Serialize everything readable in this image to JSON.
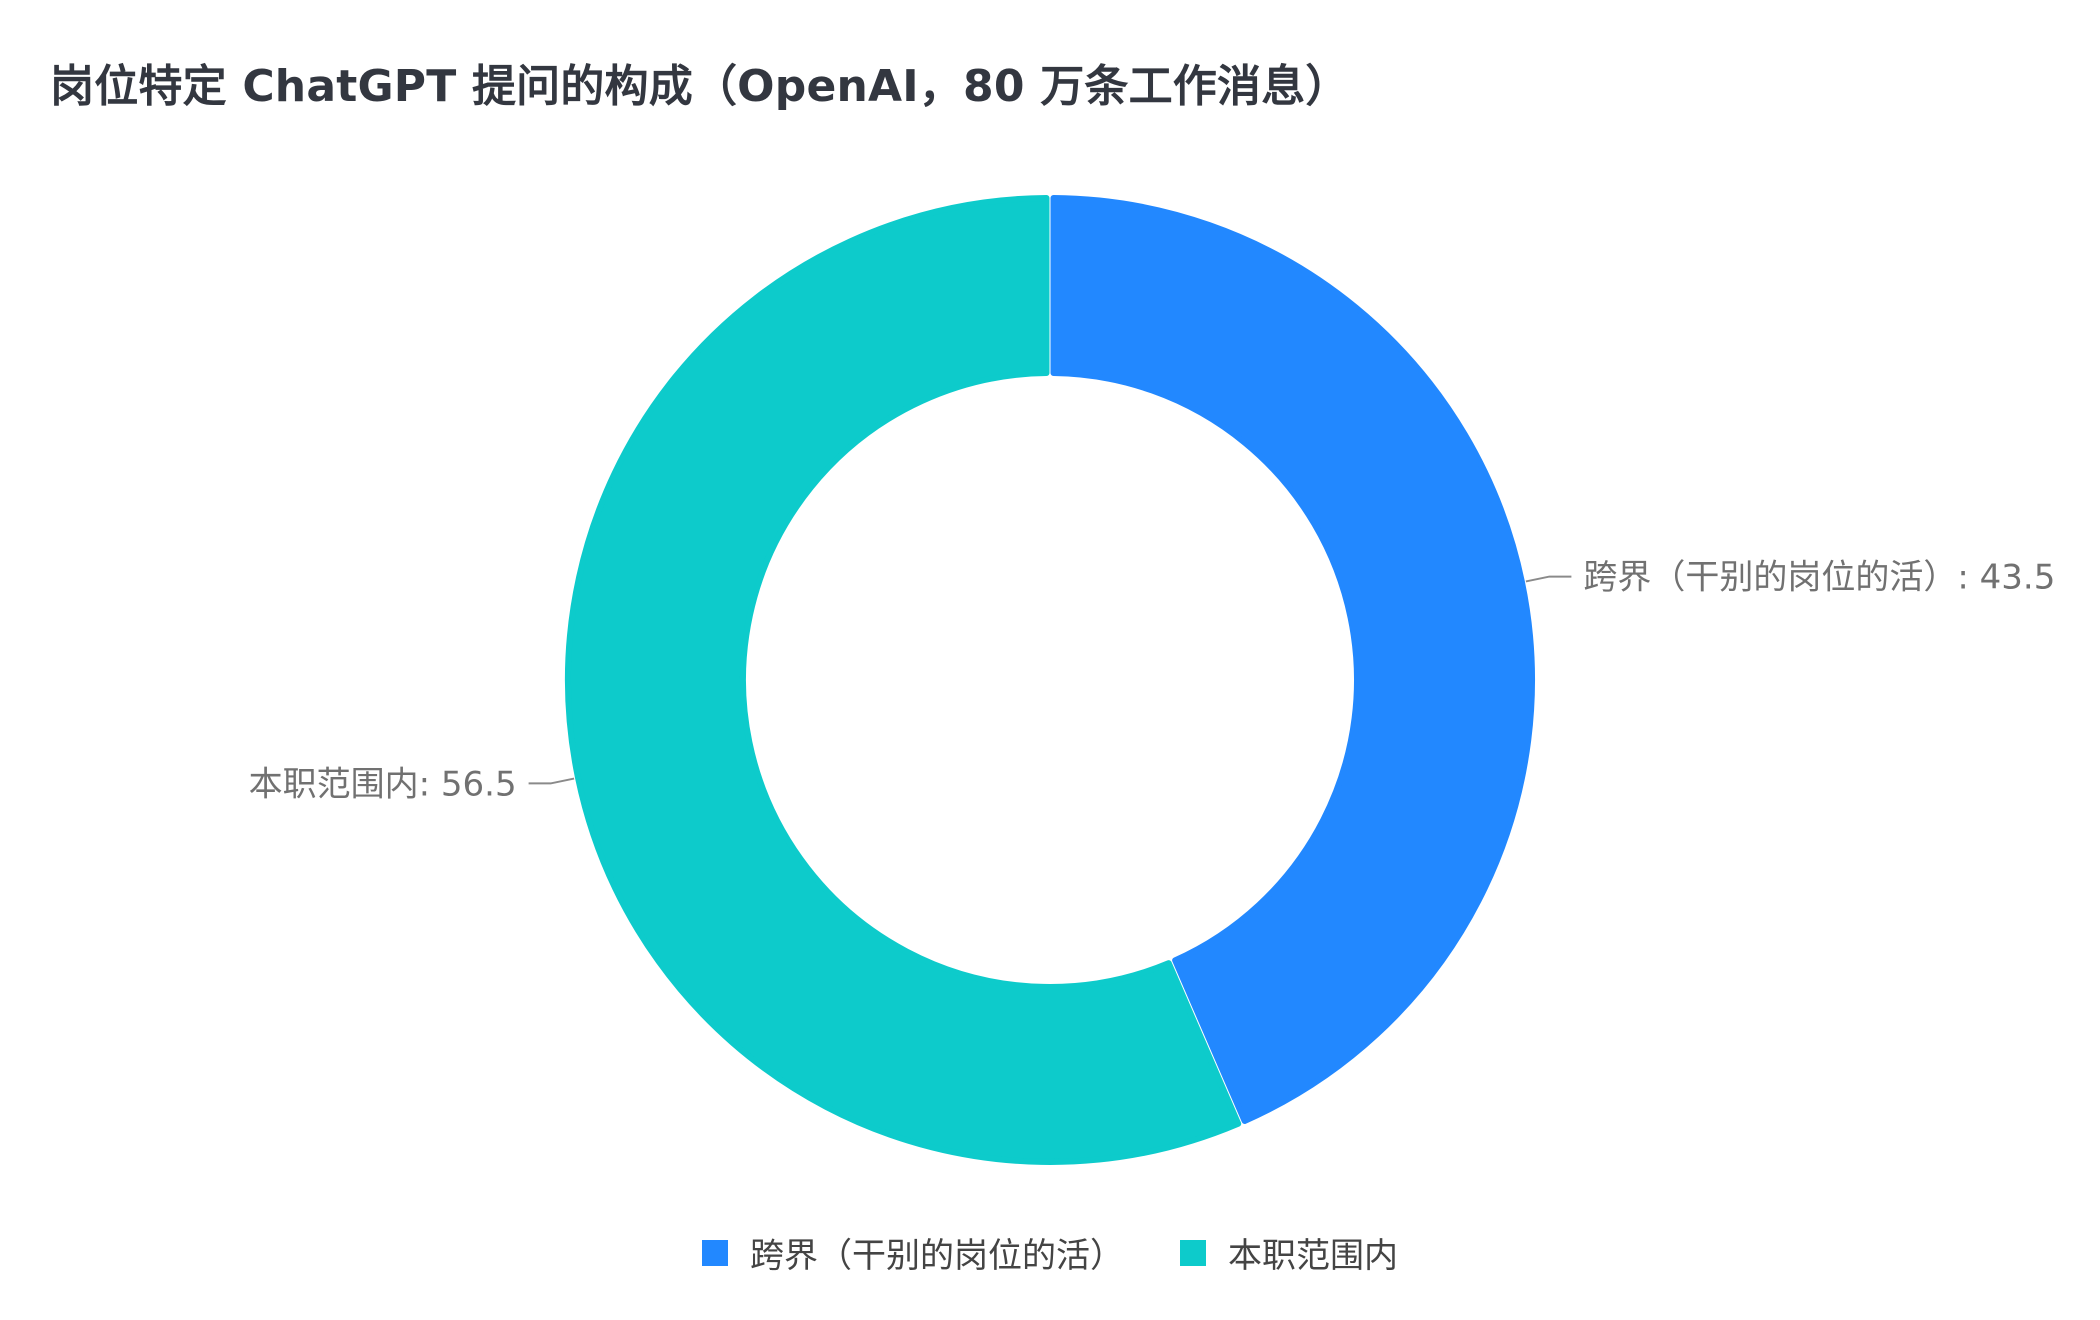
{
  "title": "岗位特定 ChatGPT 提问的构成（OpenAI，80 万条工作消息）",
  "chart_data": {
    "type": "pie",
    "donut": true,
    "title": "岗位特定 ChatGPT 提问的构成（OpenAI，80 万条工作消息）",
    "categories": [
      "跨界（干别的岗位的活）",
      "本职范围内"
    ],
    "values": [
      43.5,
      56.5
    ],
    "colors": [
      "#2288FF",
      "#0DCBCB"
    ],
    "labels": [
      "跨界（干别的岗位的活）: 43.5",
      "本职范围内: 56.5"
    ],
    "legend": {
      "position": "bottom",
      "items": [
        "跨界（干别的岗位的活）",
        "本职范围内"
      ]
    }
  }
}
